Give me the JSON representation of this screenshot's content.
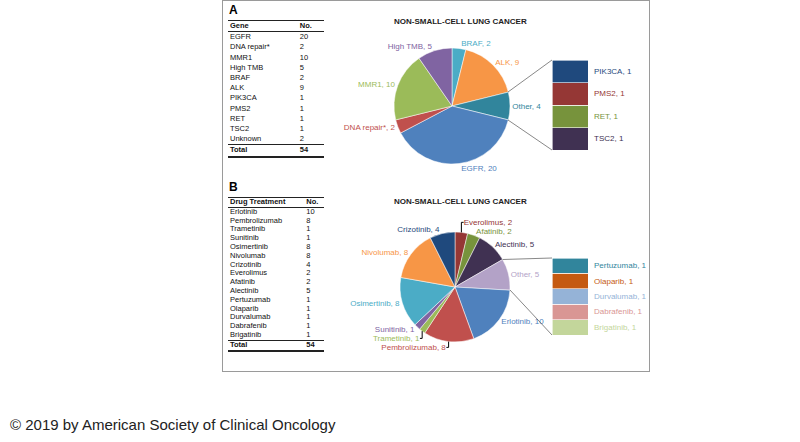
{
  "panel_labels": [
    "A",
    "B"
  ],
  "tables": [
    {
      "header": [
        "Gene",
        "No."
      ],
      "rows": [
        [
          "EGFR",
          20
        ],
        [
          "DNA repair*",
          2
        ],
        [
          "MMR1",
          10
        ],
        [
          "High TMB",
          5
        ],
        [
          "BRAF",
          2
        ],
        [
          "ALK",
          9
        ],
        [
          "PIK3CA",
          1
        ],
        [
          "PMS2",
          1
        ],
        [
          "RET",
          1
        ],
        [
          "TSC2",
          1
        ],
        [
          "Unknown",
          2
        ]
      ],
      "total": [
        "Total",
        54
      ]
    },
    {
      "header": [
        "Drug Treatment",
        "No."
      ],
      "rows": [
        [
          "Erlotinib",
          10
        ],
        [
          "Pembrolizumab",
          8
        ],
        [
          "Trametinib",
          1
        ],
        [
          "Sunitinib",
          1
        ],
        [
          "Osimertinib",
          8
        ],
        [
          "Nivolumab",
          8
        ],
        [
          "Crizotinib",
          4
        ],
        [
          "Everolimus",
          2
        ],
        [
          "Afatinib",
          2
        ],
        [
          "Alectinib",
          5
        ],
        [
          "Pertuzumab",
          1
        ],
        [
          "Olaparib",
          1
        ],
        [
          "Durvalumab",
          1
        ],
        [
          "Dabrafenib",
          1
        ],
        [
          "Brigatinib",
          1
        ]
      ],
      "total": [
        "Total",
        54
      ]
    }
  ],
  "chart_data": [
    {
      "type": "pie",
      "title": "NON-SMALL-CELL LUNG CANCER",
      "categories": [
        "BRAF",
        "ALK",
        "Other",
        "EGFR",
        "DNA repair*",
        "MMR1",
        "High TMB"
      ],
      "values": [
        2,
        9,
        4,
        20,
        2,
        10,
        5
      ],
      "value_labels": [
        "BRAF, 2",
        "ALK, 9",
        "Other, 4",
        "EGFR, 20",
        "DNA repair*, 2",
        "MMR1, 10",
        "High TMB, 5"
      ],
      "colors": [
        "#4bacc6",
        "#f79646",
        "#31859c",
        "#4f81bd",
        "#c0504d",
        "#9bbb59",
        "#8064a2"
      ],
      "data_labels": true
    },
    {
      "type": "bar",
      "stacked": true,
      "tick_labels": false,
      "data_labels": true,
      "categories": [
        null
      ],
      "ylim": [
        0,
        4
      ],
      "series": [
        {
          "name": "TSC2",
          "color": "#403152",
          "values": [
            1
          ],
          "value_labels": [
            "TSC2, 1"
          ]
        },
        {
          "name": "RET",
          "color": "#77933c",
          "values": [
            1
          ],
          "value_labels": [
            "RET, 1"
          ]
        },
        {
          "name": "PMS2",
          "color": "#953735",
          "values": [
            1
          ],
          "value_labels": [
            "PMS2, 1"
          ]
        },
        {
          "name": "PIK3CA",
          "color": "#1f497d",
          "values": [
            1
          ],
          "value_labels": [
            "PIK3CA, 1"
          ]
        }
      ]
    },
    {
      "type": "pie",
      "title": "NON-SMALL-CELL LUNG CANCER",
      "categories": [
        "Everolimus",
        "Afatinib",
        "Alectinib",
        "Other",
        "Erlotinib",
        "Pembrolizumab",
        "Trametinib",
        "Sunitinib",
        "Osimertinib",
        "Nivolumab",
        "Crizotinib"
      ],
      "values": [
        2,
        2,
        5,
        5,
        10,
        8,
        1,
        1,
        8,
        8,
        4
      ],
      "value_labels": [
        "Everolimus, 2",
        "Afatinib, 2",
        "Alectinib, 5",
        "Other, 5",
        "Erlotinib, 10",
        "Pembrolizumab, 8",
        "Trametinib, 1",
        "Sunitinib, 1",
        "Osimertinib, 8",
        "Nivolumab, 8",
        "Crizotinib, 4"
      ],
      "colors": [
        "#953735",
        "#77933c",
        "#403152",
        "#b3a2c7",
        "#4f81bd",
        "#c0504d",
        "#9bbb59",
        "#8064a2",
        "#4bacc6",
        "#f79646",
        "#1f497d"
      ],
      "data_labels": true
    },
    {
      "type": "bar",
      "stacked": true,
      "tick_labels": false,
      "data_labels": true,
      "categories": [
        null
      ],
      "ylim": [
        0,
        5
      ],
      "series": [
        {
          "name": "Brigatinib",
          "color": "#c3d69b",
          "values": [
            1
          ],
          "value_labels": [
            "Brigatinib, 1"
          ]
        },
        {
          "name": "Dabrafenib",
          "color": "#d99694",
          "values": [
            1
          ],
          "value_labels": [
            "Dabrafenib, 1"
          ]
        },
        {
          "name": "Durvalumab",
          "color": "#95b3d7",
          "values": [
            1
          ],
          "value_labels": [
            "Durvalumab, 1"
          ]
        },
        {
          "name": "Olaparib",
          "color": "#c55a11",
          "values": [
            1
          ],
          "value_labels": [
            "Olaparib, 1"
          ]
        },
        {
          "name": "Pertuzumab",
          "color": "#31859c",
          "values": [
            1
          ],
          "value_labels": [
            "Pertuzumab, 1"
          ]
        }
      ]
    }
  ],
  "footer": "© 2019 by American Society of Clinical Oncology"
}
